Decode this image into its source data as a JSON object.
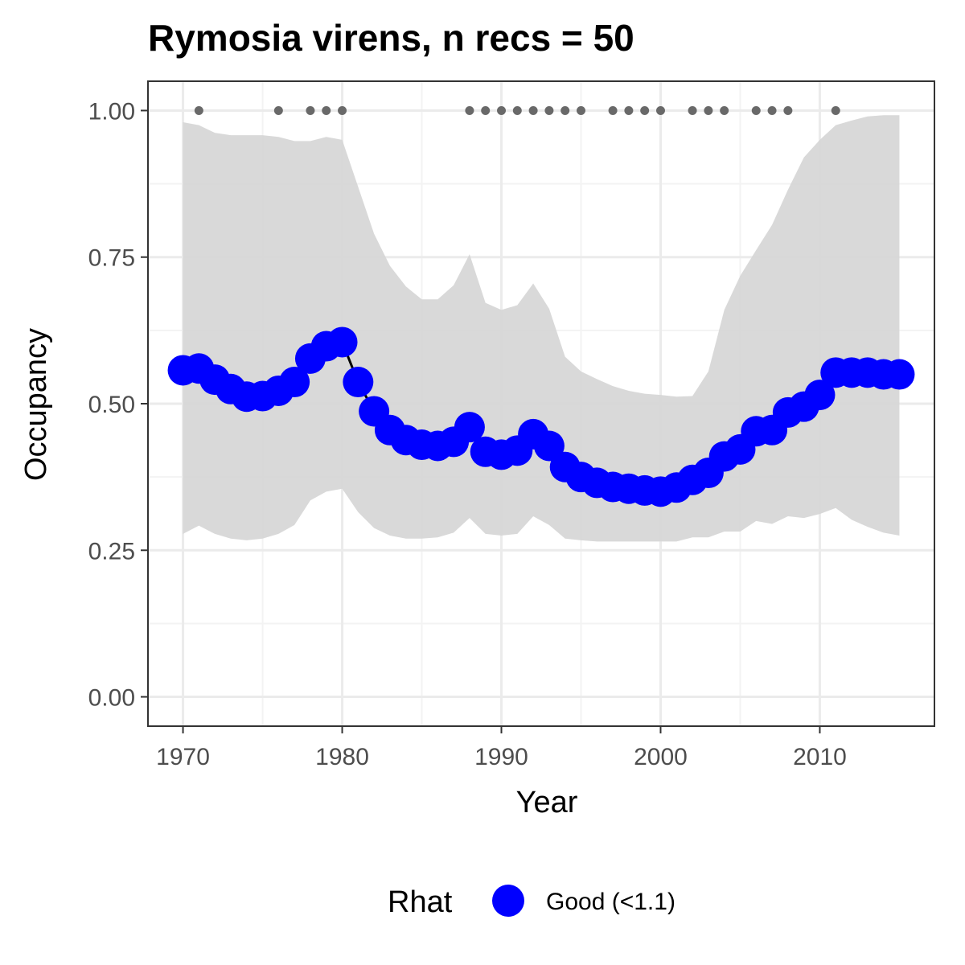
{
  "chart_data": {
    "type": "line",
    "title": "Rymosia virens, n recs = 50",
    "xlabel": "Year",
    "ylabel": "Occupancy",
    "xlim": [
      1967.8,
      2017.2
    ],
    "ylim": [
      -0.05,
      1.05
    ],
    "x_ticks": [
      1970,
      1980,
      1990,
      2000,
      2010
    ],
    "x_tick_labels": [
      "1970",
      "1980",
      "1990",
      "2000",
      "2010"
    ],
    "y_ticks": [
      0,
      0.25,
      0.5,
      0.75,
      1.0
    ],
    "y_tick_labels": [
      "0.00",
      "0.25",
      "0.50",
      "0.75",
      "1.00"
    ],
    "grid": true,
    "years": [
      1970,
      1971,
      1972,
      1973,
      1974,
      1975,
      1976,
      1977,
      1978,
      1979,
      1980,
      1981,
      1982,
      1983,
      1984,
      1985,
      1986,
      1987,
      1988,
      1989,
      1990,
      1991,
      1992,
      1993,
      1994,
      1995,
      1996,
      1997,
      1998,
      1999,
      2000,
      2001,
      2002,
      2003,
      2004,
      2005,
      2006,
      2007,
      2008,
      2009,
      2010,
      2011,
      2012,
      2013,
      2014,
      2015
    ],
    "series": [
      {
        "legend_label": "Good (<1.1)",
        "color": "#0000ff",
        "values": [
          0.557,
          0.56,
          0.541,
          0.525,
          0.512,
          0.513,
          0.522,
          0.537,
          0.577,
          0.598,
          0.605,
          0.537,
          0.487,
          0.455,
          0.438,
          0.43,
          0.428,
          0.435,
          0.46,
          0.418,
          0.413,
          0.42,
          0.448,
          0.428,
          0.392,
          0.375,
          0.365,
          0.358,
          0.355,
          0.352,
          0.35,
          0.357,
          0.37,
          0.382,
          0.41,
          0.422,
          0.453,
          0.455,
          0.485,
          0.495,
          0.515,
          0.553,
          0.553,
          0.553,
          0.55,
          0.55
        ]
      }
    ],
    "ci_upper": [
      0.98,
      0.975,
      0.962,
      0.958,
      0.958,
      0.958,
      0.955,
      0.948,
      0.948,
      0.955,
      0.95,
      0.87,
      0.79,
      0.735,
      0.7,
      0.678,
      0.678,
      0.702,
      0.755,
      0.672,
      0.66,
      0.668,
      0.705,
      0.662,
      0.58,
      0.555,
      0.542,
      0.53,
      0.522,
      0.517,
      0.515,
      0.512,
      0.513,
      0.555,
      0.66,
      0.718,
      0.762,
      0.805,
      0.865,
      0.92,
      0.95,
      0.975,
      0.983,
      0.99,
      0.992,
      0.992
    ],
    "ci_lower": [
      0.278,
      0.292,
      0.278,
      0.27,
      0.267,
      0.27,
      0.278,
      0.293,
      0.335,
      0.35,
      0.355,
      0.315,
      0.288,
      0.275,
      0.27,
      0.27,
      0.272,
      0.28,
      0.305,
      0.278,
      0.275,
      0.278,
      0.308,
      0.293,
      0.27,
      0.267,
      0.265,
      0.265,
      0.265,
      0.265,
      0.265,
      0.265,
      0.272,
      0.272,
      0.282,
      0.282,
      0.3,
      0.295,
      0.308,
      0.305,
      0.312,
      0.322,
      0.302,
      0.29,
      0.28,
      0.275
    ],
    "record_years": [
      1971,
      1976,
      1978,
      1979,
      1980,
      1988,
      1989,
      1990,
      1991,
      1992,
      1993,
      1994,
      1995,
      1997,
      1998,
      1999,
      2000,
      2002,
      2003,
      2004,
      2006,
      2007,
      2008,
      2011
    ],
    "record_marker_value": 1.0,
    "legend": {
      "title": "Rhat",
      "position": "bottom"
    },
    "colors": {
      "line": "#000000",
      "ribbon": "#d6d6d6",
      "records": "#696969",
      "grid_major": "#ebebeb",
      "grid_minor": "#f3f3f3",
      "panel_border": "#333333"
    }
  }
}
